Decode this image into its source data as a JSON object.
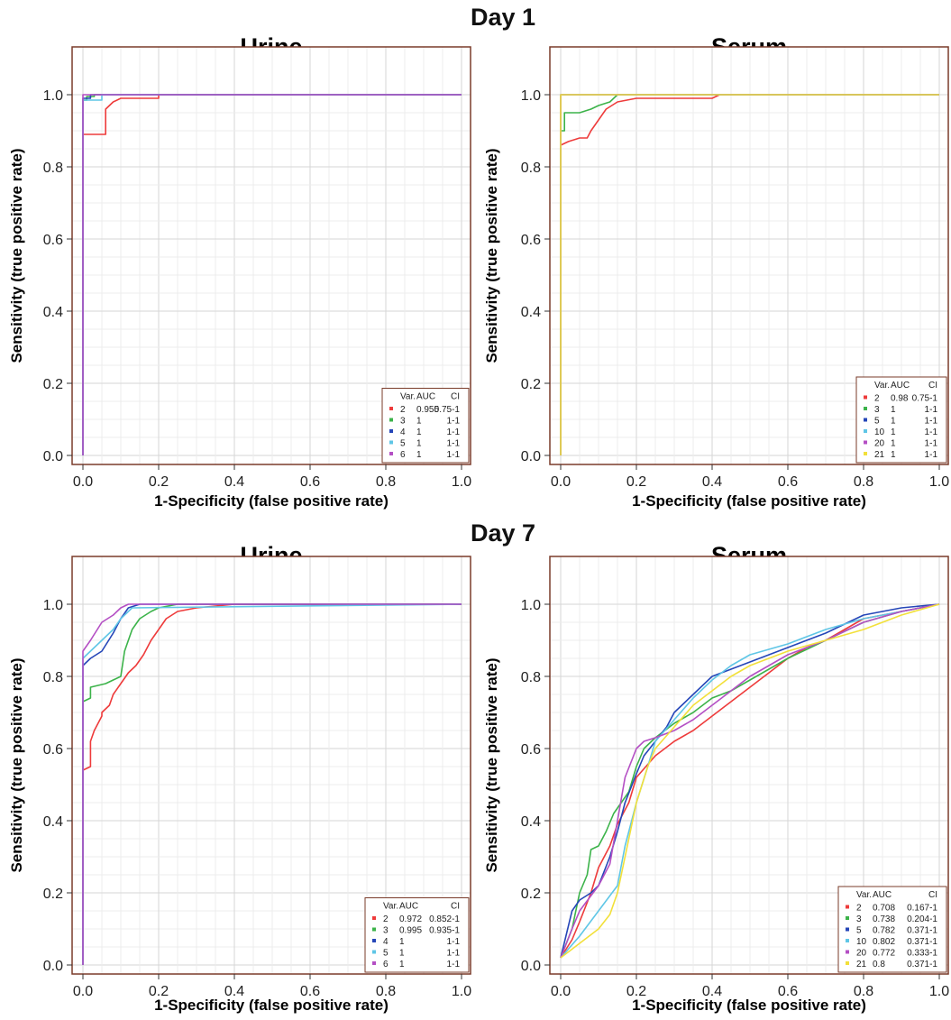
{
  "day_titles": [
    "Day 1",
    "Day 7"
  ],
  "chart_data": [
    {
      "type": "line",
      "title": "Urine",
      "group": "Day 1",
      "xlabel": "1-Specificity (false positive rate)",
      "ylabel": "Sensitivity (true positive rate)",
      "xlim": [
        0,
        1
      ],
      "ylim": [
        0,
        1
      ],
      "xticks": [
        "0.0",
        "0.2",
        "0.4",
        "0.6",
        "0.8",
        "1.0"
      ],
      "yticks": [
        "0.0",
        "0.2",
        "0.4",
        "0.6",
        "0.8",
        "1.0"
      ],
      "grid": true,
      "legend_position": "bottom-right",
      "legend_header": [
        "Var.",
        "AUC",
        "CI"
      ],
      "series": [
        {
          "name": "2",
          "auc": "0.955",
          "ci": "0.75-1",
          "color": "#ee3b3b",
          "x": [
            0,
            0,
            0,
            0.06,
            0.06,
            0.08,
            0.1,
            0.2,
            0.2,
            1
          ],
          "y": [
            0,
            0.89,
            0.89,
            0.89,
            0.96,
            0.98,
            0.99,
            0.99,
            1,
            1
          ]
        },
        {
          "name": "3",
          "auc": "1",
          "ci": "1-1",
          "color": "#3cb34a",
          "x": [
            0,
            0,
            0.01,
            0.01,
            0.03,
            0.03,
            1
          ],
          "y": [
            0,
            0.985,
            0.985,
            0.995,
            0.995,
            1,
            1
          ]
        },
        {
          "name": "4",
          "auc": "1",
          "ci": "1-1",
          "color": "#2546b8",
          "x": [
            0,
            0,
            0.02,
            0.02,
            1
          ],
          "y": [
            0,
            0.99,
            0.99,
            1,
            1
          ]
        },
        {
          "name": "5",
          "auc": "1",
          "ci": "1-1",
          "color": "#5fc6e6",
          "x": [
            0,
            0,
            0.05,
            0.05,
            1
          ],
          "y": [
            0,
            0.985,
            0.985,
            1,
            1
          ]
        },
        {
          "name": "6",
          "auc": "1",
          "ci": "1-1",
          "color": "#b44fc4",
          "x": [
            0,
            0,
            1
          ],
          "y": [
            0,
            1,
            1
          ]
        }
      ]
    },
    {
      "type": "line",
      "title": "Serum",
      "group": "Day 1",
      "xlabel": "1-Specificity (false positive rate)",
      "ylabel": "Sensitivity (true positive rate)",
      "xlim": [
        0,
        1
      ],
      "ylim": [
        0,
        1
      ],
      "xticks": [
        "0.0",
        "0.2",
        "0.4",
        "0.6",
        "0.8",
        "1.0"
      ],
      "yticks": [
        "0.0",
        "0.2",
        "0.4",
        "0.6",
        "0.8",
        "1.0"
      ],
      "grid": true,
      "legend_position": "bottom-right",
      "legend_header": [
        "Var.",
        "AUC",
        "CI"
      ],
      "series": [
        {
          "name": "2",
          "auc": "0.98",
          "ci": "0.75-1",
          "color": "#ee3b3b",
          "x": [
            0,
            0,
            0.02,
            0.05,
            0.07,
            0.08,
            0.1,
            0.12,
            0.15,
            0.2,
            0.4,
            0.42,
            1
          ],
          "y": [
            0,
            0.86,
            0.87,
            0.88,
            0.88,
            0.9,
            0.93,
            0.96,
            0.98,
            0.99,
            0.99,
            1,
            1
          ]
        },
        {
          "name": "3",
          "auc": "1",
          "ci": "1-1",
          "color": "#3cb34a",
          "x": [
            0,
            0,
            0.01,
            0.01,
            0.05,
            0.08,
            0.1,
            0.13,
            0.15,
            1
          ],
          "y": [
            0,
            0.9,
            0.9,
            0.95,
            0.95,
            0.96,
            0.97,
            0.98,
            1,
            1
          ]
        },
        {
          "name": "5",
          "auc": "1",
          "ci": "1-1",
          "color": "#2546b8",
          "x": [
            0,
            0,
            1
          ],
          "y": [
            0,
            1,
            1
          ]
        },
        {
          "name": "10",
          "auc": "1",
          "ci": "1-1",
          "color": "#5fc6e6",
          "x": [
            0,
            0,
            1
          ],
          "y": [
            0,
            1,
            1
          ]
        },
        {
          "name": "20",
          "auc": "1",
          "ci": "1-1",
          "color": "#b44fc4",
          "x": [
            0,
            0,
            1
          ],
          "y": [
            0,
            1,
            1
          ]
        },
        {
          "name": "21",
          "auc": "1",
          "ci": "1-1",
          "color": "#f2e03a",
          "x": [
            0,
            0,
            1
          ],
          "y": [
            0,
            1,
            1
          ]
        }
      ]
    },
    {
      "type": "line",
      "title": "Urine",
      "group": "Day 7",
      "xlabel": "1-Specificity (false positive rate)",
      "ylabel": "Sensitivity (true positive rate)",
      "xlim": [
        0,
        1
      ],
      "ylim": [
        0,
        1
      ],
      "xticks": [
        "0.0",
        "0.2",
        "0.4",
        "0.6",
        "0.8",
        "1.0"
      ],
      "yticks": [
        "0.0",
        "0.2",
        "0.4",
        "0.6",
        "0.8",
        "1.0"
      ],
      "grid": true,
      "legend_position": "bottom-right",
      "legend_header": [
        "Var.",
        "AUC",
        "CI"
      ],
      "series": [
        {
          "name": "2",
          "auc": "0.972",
          "ci": "0.852-1",
          "color": "#ee3b3b",
          "x": [
            0,
            0,
            0.02,
            0.02,
            0.03,
            0.04,
            0.05,
            0.05,
            0.07,
            0.08,
            0.1,
            0.12,
            0.14,
            0.16,
            0.18,
            0.2,
            0.22,
            0.25,
            0.3,
            0.35,
            0.4,
            1
          ],
          "y": [
            0,
            0.54,
            0.55,
            0.62,
            0.65,
            0.67,
            0.69,
            0.7,
            0.72,
            0.75,
            0.78,
            0.81,
            0.83,
            0.86,
            0.9,
            0.93,
            0.96,
            0.98,
            0.99,
            0.995,
            1,
            1
          ]
        },
        {
          "name": "3",
          "auc": "0.995",
          "ci": "0.935-1",
          "color": "#3cb34a",
          "x": [
            0,
            0,
            0.02,
            0.02,
            0.06,
            0.08,
            0.1,
            0.11,
            0.13,
            0.15,
            0.18,
            0.2,
            0.25,
            1
          ],
          "y": [
            0,
            0.73,
            0.74,
            0.77,
            0.78,
            0.79,
            0.8,
            0.87,
            0.93,
            0.96,
            0.98,
            0.99,
            1,
            1
          ]
        },
        {
          "name": "4",
          "auc": "1",
          "ci": "1-1",
          "color": "#2546b8",
          "x": [
            0,
            0,
            0.02,
            0.05,
            0.08,
            0.1,
            0.12,
            0.15,
            1
          ],
          "y": [
            0,
            0.83,
            0.85,
            0.87,
            0.92,
            0.96,
            0.99,
            1,
            1
          ]
        },
        {
          "name": "5",
          "auc": "1",
          "ci": "1-1",
          "color": "#5fc6e6",
          "x": [
            0,
            0,
            0.02,
            0.05,
            0.08,
            0.1,
            0.13,
            1
          ],
          "y": [
            0,
            0.85,
            0.87,
            0.9,
            0.93,
            0.96,
            0.99,
            1
          ]
        },
        {
          "name": "6",
          "auc": "1",
          "ci": "1-1",
          "color": "#b44fc4",
          "x": [
            0,
            0,
            0.02,
            0.05,
            0.08,
            0.1,
            0.12,
            1
          ],
          "y": [
            0,
            0.87,
            0.9,
            0.95,
            0.97,
            0.99,
            1,
            1
          ]
        }
      ]
    },
    {
      "type": "line",
      "title": "Serum",
      "group": "Day 7",
      "xlabel": "1-Specificity (false positive rate)",
      "ylabel": "Sensitivity (true positive rate)",
      "xlim": [
        0,
        1
      ],
      "ylim": [
        0,
        1
      ],
      "xticks": [
        "0.0",
        "0.2",
        "0.4",
        "0.6",
        "0.8",
        "1.0"
      ],
      "yticks": [
        "0.0",
        "0.2",
        "0.4",
        "0.6",
        "0.8",
        "1.0"
      ],
      "grid": true,
      "legend_position": "bottom-right",
      "legend_header": [
        "Var.",
        "AUC",
        "CI"
      ],
      "series": [
        {
          "name": "2",
          "auc": "0.708",
          "ci": "0.167-1",
          "color": "#ee3b3b",
          "x": [
            0,
            0.03,
            0.05,
            0.08,
            0.1,
            0.13,
            0.15,
            0.18,
            0.2,
            0.25,
            0.3,
            0.35,
            0.4,
            0.45,
            0.5,
            0.55,
            0.6,
            0.65,
            0.7,
            0.75,
            0.8,
            0.85,
            0.9,
            1
          ],
          "y": [
            0.02,
            0.07,
            0.12,
            0.2,
            0.27,
            0.33,
            0.39,
            0.45,
            0.52,
            0.58,
            0.62,
            0.65,
            0.69,
            0.73,
            0.77,
            0.81,
            0.85,
            0.88,
            0.9,
            0.93,
            0.96,
            0.97,
            0.98,
            1
          ]
        },
        {
          "name": "3",
          "auc": "0.738",
          "ci": "0.204-1",
          "color": "#3cb34a",
          "x": [
            0,
            0.03,
            0.05,
            0.07,
            0.08,
            0.1,
            0.12,
            0.14,
            0.16,
            0.18,
            0.2,
            0.22,
            0.25,
            0.3,
            0.35,
            0.4,
            0.45,
            0.5,
            0.6,
            0.7,
            0.8,
            0.9,
            1
          ],
          "y": [
            0.02,
            0.1,
            0.2,
            0.25,
            0.32,
            0.33,
            0.37,
            0.42,
            0.45,
            0.48,
            0.55,
            0.6,
            0.63,
            0.67,
            0.7,
            0.74,
            0.76,
            0.79,
            0.85,
            0.9,
            0.95,
            0.98,
            1
          ]
        },
        {
          "name": "5",
          "auc": "0.782",
          "ci": "0.371-1",
          "color": "#2546b8",
          "x": [
            0,
            0.03,
            0.05,
            0.08,
            0.1,
            0.13,
            0.15,
            0.17,
            0.2,
            0.22,
            0.25,
            0.28,
            0.3,
            0.35,
            0.4,
            0.45,
            0.5,
            0.6,
            0.7,
            0.8,
            0.9,
            1
          ],
          "y": [
            0.02,
            0.15,
            0.18,
            0.2,
            0.22,
            0.3,
            0.37,
            0.45,
            0.53,
            0.58,
            0.62,
            0.66,
            0.7,
            0.75,
            0.8,
            0.82,
            0.84,
            0.88,
            0.92,
            0.97,
            0.99,
            1
          ]
        },
        {
          "name": "10",
          "auc": "0.802",
          "ci": "0.371-1",
          "color": "#5fc6e6",
          "x": [
            0,
            0.05,
            0.1,
            0.15,
            0.17,
            0.2,
            0.23,
            0.25,
            0.3,
            0.35,
            0.4,
            0.45,
            0.5,
            0.6,
            0.7,
            0.8,
            0.9,
            1
          ],
          "y": [
            0.02,
            0.08,
            0.15,
            0.22,
            0.33,
            0.45,
            0.55,
            0.62,
            0.68,
            0.74,
            0.79,
            0.83,
            0.86,
            0.89,
            0.93,
            0.96,
            0.98,
            1
          ]
        },
        {
          "name": "20",
          "auc": "0.772",
          "ci": "0.333-1",
          "color": "#b44fc4",
          "x": [
            0,
            0.03,
            0.05,
            0.1,
            0.13,
            0.15,
            0.17,
            0.2,
            0.22,
            0.25,
            0.3,
            0.35,
            0.4,
            0.45,
            0.5,
            0.6,
            0.7,
            0.8,
            0.9,
            1
          ],
          "y": [
            0.02,
            0.1,
            0.15,
            0.22,
            0.28,
            0.4,
            0.52,
            0.6,
            0.62,
            0.63,
            0.65,
            0.68,
            0.72,
            0.76,
            0.8,
            0.86,
            0.9,
            0.95,
            0.98,
            1
          ]
        },
        {
          "name": "21",
          "auc": "0.8",
          "ci": "0.371-1",
          "color": "#f2e03a",
          "x": [
            0,
            0.05,
            0.1,
            0.13,
            0.15,
            0.17,
            0.2,
            0.23,
            0.25,
            0.3,
            0.35,
            0.4,
            0.45,
            0.5,
            0.6,
            0.7,
            0.8,
            0.9,
            1
          ],
          "y": [
            0.02,
            0.06,
            0.1,
            0.14,
            0.2,
            0.3,
            0.45,
            0.55,
            0.6,
            0.66,
            0.72,
            0.76,
            0.8,
            0.83,
            0.87,
            0.9,
            0.93,
            0.97,
            1
          ]
        }
      ]
    }
  ]
}
